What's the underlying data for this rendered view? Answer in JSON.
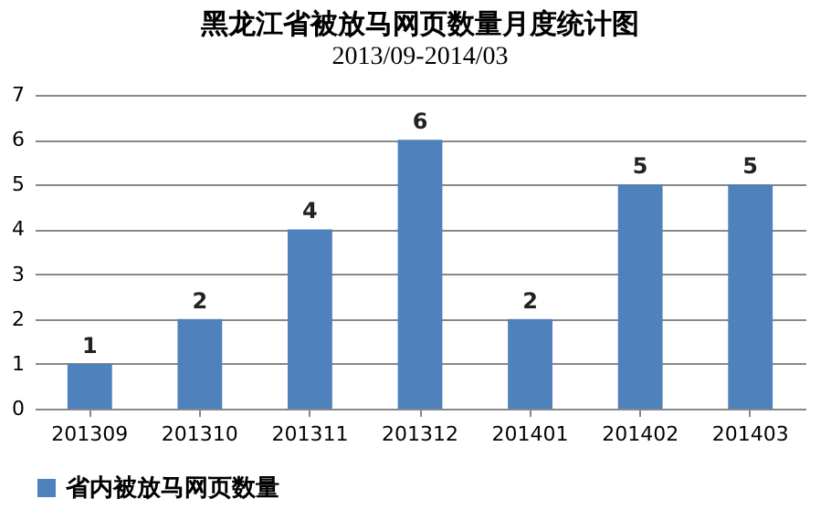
{
  "chart_data": {
    "type": "bar",
    "title": "黑龙江省被放马网页数量月度统计图",
    "subtitle": "2013/09-2014/03",
    "categories": [
      "201309",
      "201310",
      "201311",
      "201312",
      "201401",
      "201402",
      "201403"
    ],
    "series": [
      {
        "name": "省内被放马网页数量",
        "color": "#4f81bd",
        "values": [
          1,
          2,
          4,
          6,
          2,
          5,
          5
        ]
      }
    ],
    "ylim": [
      0,
      7
    ],
    "yticks": [
      0,
      1,
      2,
      3,
      4,
      5,
      6,
      7
    ],
    "grid": "y",
    "legend": "bottom",
    "data_labels": true
  }
}
